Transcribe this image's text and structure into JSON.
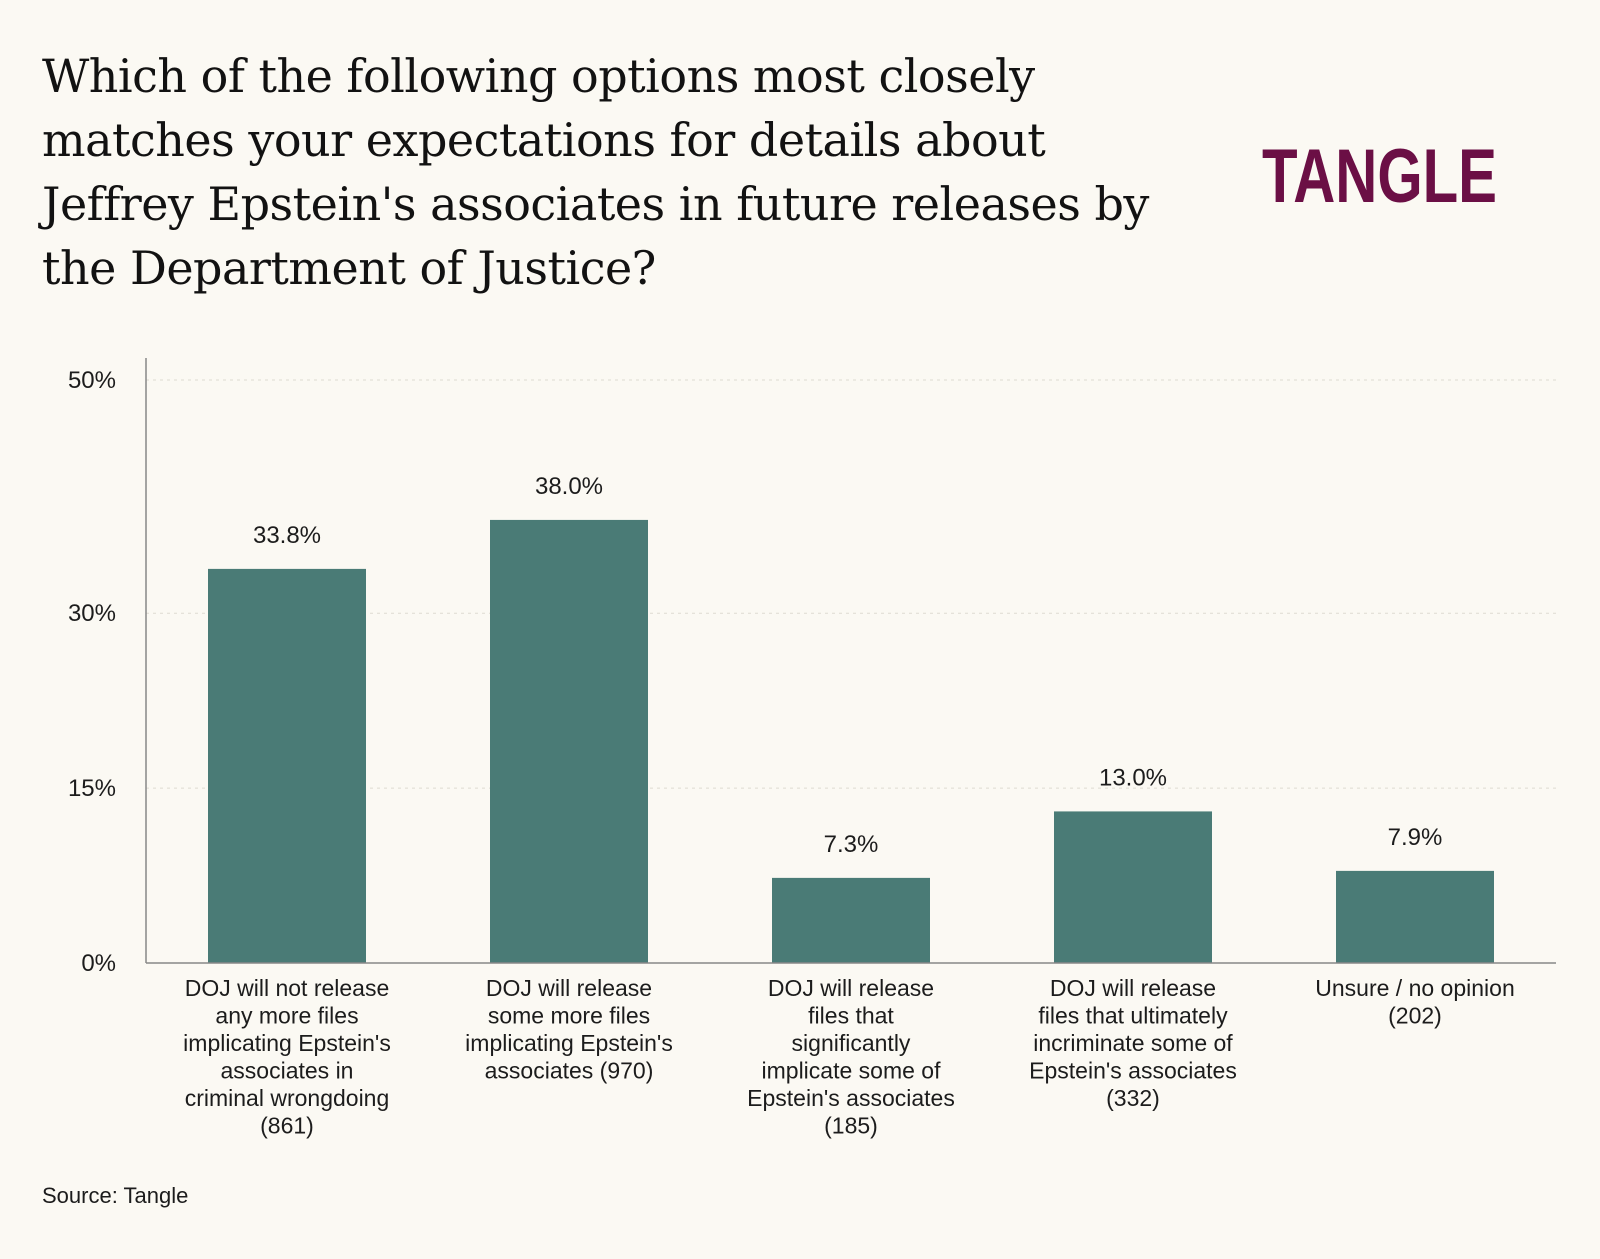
{
  "title": "Which of the following options most closely matches your expectations for details about Jeffrey Epstein's associates in future releases by the Department of Justice?",
  "logo": {
    "text": "TANGLE",
    "color": "#6b0f45"
  },
  "source": "Source: Tangle",
  "colors": {
    "bar": "#4a7b76",
    "axis": "#888888",
    "grid": "#dedbd2"
  },
  "chart_data": {
    "type": "bar",
    "title": "Which of the following options most closely matches your expectations for details about Jeffrey Epstein's associates in future releases by the Department of Justice?",
    "xlabel": "",
    "ylabel": "",
    "ylim": [
      0,
      50
    ],
    "yticks": [
      0,
      15,
      30,
      50
    ],
    "ytick_labels": [
      "0%",
      "15%",
      "30%",
      "50%"
    ],
    "grid": true,
    "categories": [
      [
        "DOJ will not release",
        "any more files",
        "implicating Epstein's",
        "associates in",
        "criminal wrongdoing",
        "(861)"
      ],
      [
        "DOJ will release",
        "some more files",
        "implicating Epstein's",
        "associates (970)"
      ],
      [
        "DOJ will release",
        "files that",
        "significantly",
        "implicate some of",
        "Epstein's associates",
        "(185)"
      ],
      [
        "DOJ will release",
        "files that ultimately",
        "incriminate some of",
        "Epstein's associates",
        "(332)"
      ],
      [
        "Unsure / no opinion",
        "(202)"
      ]
    ],
    "values": [
      33.8,
      38.0,
      7.3,
      13.0,
      7.9
    ],
    "value_labels": [
      "33.8%",
      "38.0%",
      "7.3%",
      "13.0%",
      "7.9%"
    ]
  }
}
